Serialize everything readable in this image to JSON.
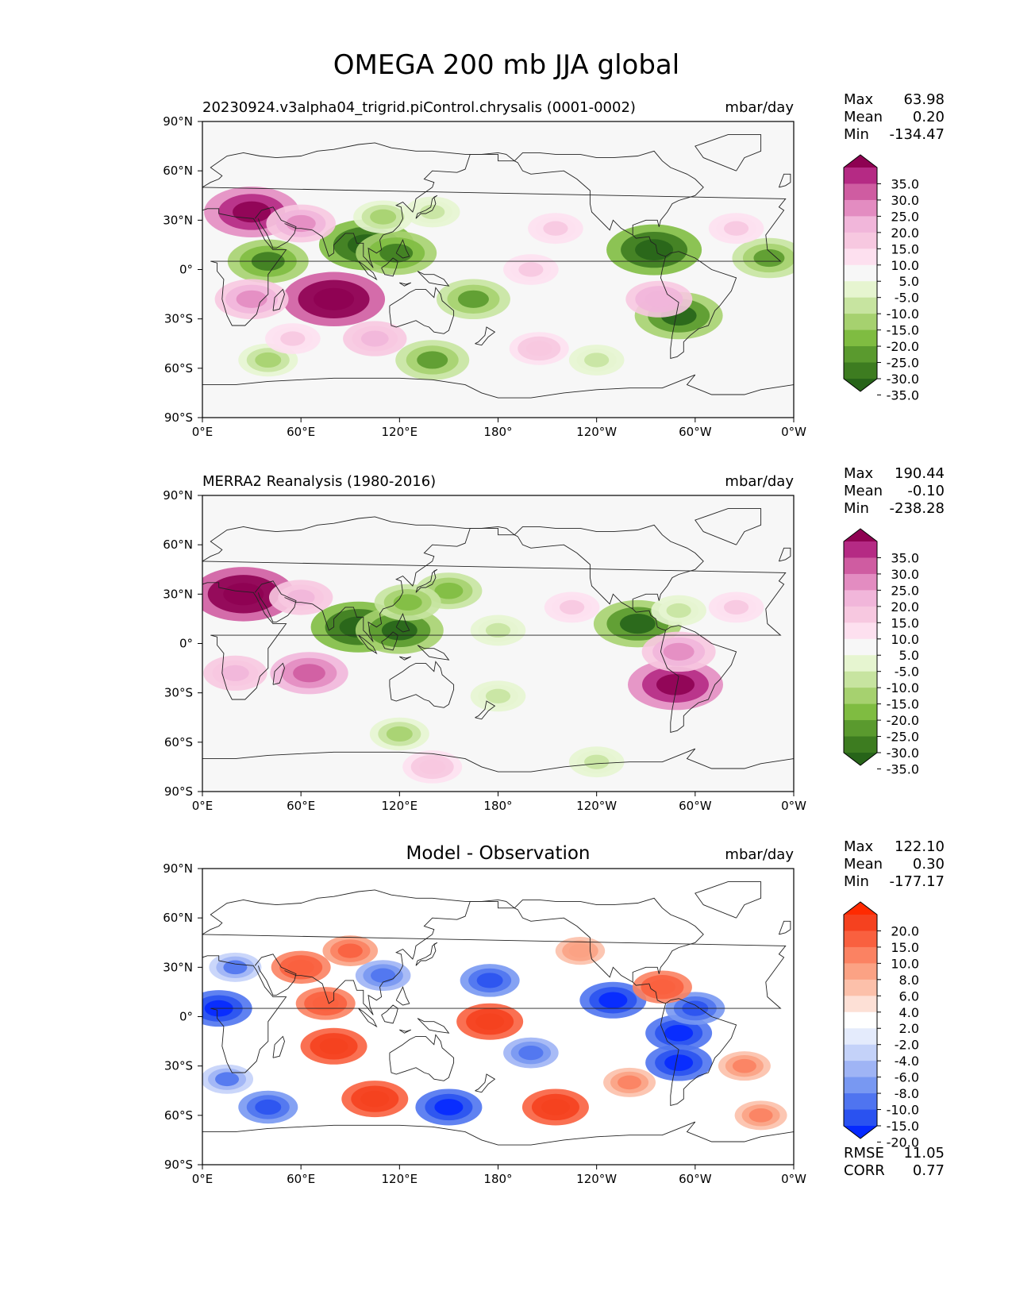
{
  "figure": {
    "title": "OMEGA 200 mb JJA global"
  },
  "axes": {
    "lat_ticks": [
      "90°N",
      "60°N",
      "30°N",
      "0°",
      "30°S",
      "60°S",
      "90°S"
    ],
    "lon_ticks": [
      "0°E",
      "60°E",
      "120°E",
      "180°",
      "120°W",
      "60°W",
      "0°W"
    ]
  },
  "colors": {
    "div_piyg": [
      "#276419",
      "#3d7c20",
      "#5a9a2e",
      "#7fbc41",
      "#a6d16f",
      "#c7e4a0",
      "#e6f5d0",
      "#f7f7f7",
      "#fde0ef",
      "#f7c8e0",
      "#f1b6da",
      "#e38cc1",
      "#cf5ca1",
      "#b52a84",
      "#8e0152"
    ],
    "div_bwr": [
      "#0529ff",
      "#2a52f0",
      "#4f74f0",
      "#7898f2",
      "#9fb4f5",
      "#c4d2f9",
      "#e4ebfc",
      "#ffffff",
      "#fde0d6",
      "#fcc0aa",
      "#fba284",
      "#fb8262",
      "#f9603f",
      "#f5411f",
      "#ff2a00"
    ],
    "coast": "#222222"
  },
  "panels": [
    {
      "title": "20230924.v3alpha04_trigrid.piControl.chrysalis (0001-0002)",
      "center_title": "",
      "units": "mbar/day",
      "stats": [
        [
          "Max",
          "63.98"
        ],
        [
          "Mean",
          "0.20"
        ],
        [
          "Min",
          "-134.47"
        ]
      ],
      "extra_stats": [],
      "colorbar_ticks": [
        "35.0",
        "30.0",
        "25.0",
        "20.0",
        "15.0",
        "10.0",
        "5.0",
        "-5.0",
        "-10.0",
        "-15.0",
        "-20.0",
        "-25.0",
        "-30.0",
        "-35.0"
      ]
    },
    {
      "title": "MERRA2 Reanalysis (1980-2016)",
      "center_title": "",
      "units": "mbar/day",
      "stats": [
        [
          "Max",
          "190.44"
        ],
        [
          "Mean",
          "-0.10"
        ],
        [
          "Min",
          "-238.28"
        ]
      ],
      "extra_stats": [],
      "colorbar_ticks": [
        "35.0",
        "30.0",
        "25.0",
        "20.0",
        "15.0",
        "10.0",
        "5.0",
        "-5.0",
        "-10.0",
        "-15.0",
        "-20.0",
        "-25.0",
        "-30.0",
        "-35.0"
      ]
    },
    {
      "title": "",
      "center_title": "Model - Observation",
      "units": "mbar/day",
      "stats": [
        [
          "Max",
          "122.10"
        ],
        [
          "Mean",
          "0.30"
        ],
        [
          "Min",
          "-177.17"
        ]
      ],
      "extra_stats": [
        [
          "RMSE",
          "11.05"
        ],
        [
          "CORR",
          "0.77"
        ]
      ],
      "colorbar_ticks": [
        "20.0",
        "15.0",
        "10.0",
        "8.0",
        "6.0",
        "4.0",
        "2.0",
        "-2.0",
        "-4.0",
        "-6.0",
        "-8.0",
        "-10.0",
        "-15.0",
        "-20.0"
      ]
    }
  ],
  "chart_data": [
    {
      "type": "heatmap",
      "title": "20230924.v3alpha04_trigrid.piControl.chrysalis (0001-0002)",
      "units": "mbar/day",
      "xlim": [
        0,
        360
      ],
      "ylim": [
        -90,
        90
      ],
      "contour_levels": [
        -35,
        -30,
        -25,
        -20,
        -15,
        -10,
        -5,
        5,
        10,
        15,
        20,
        25,
        30,
        35
      ],
      "stats": {
        "max": 63.98,
        "mean": 0.2,
        "min": -134.47
      },
      "features": [
        {
          "lon": 100,
          "lat": 15,
          "value": -40
        },
        {
          "lon": 118,
          "lat": 10,
          "value": -30
        },
        {
          "lon": 40,
          "lat": 5,
          "value": -30
        },
        {
          "lon": 275,
          "lat": 12,
          "value": -40
        },
        {
          "lon": 345,
          "lat": 7,
          "value": -25
        },
        {
          "lon": 110,
          "lat": 32,
          "value": -15
        },
        {
          "lon": 140,
          "lat": 35,
          "value": -12
        },
        {
          "lon": 165,
          "lat": -18,
          "value": -25
        },
        {
          "lon": 290,
          "lat": -28,
          "value": -35
        },
        {
          "lon": 140,
          "lat": -55,
          "value": -25
        },
        {
          "lon": 40,
          "lat": -55,
          "value": -15
        },
        {
          "lon": 240,
          "lat": -55,
          "value": -12
        },
        {
          "lon": 80,
          "lat": -18,
          "value": 45
        },
        {
          "lon": 30,
          "lat": 35,
          "value": 40
        },
        {
          "lon": 60,
          "lat": 28,
          "value": 22
        },
        {
          "lon": 30,
          "lat": -18,
          "value": 25
        },
        {
          "lon": 200,
          "lat": 0,
          "value": 12
        },
        {
          "lon": 215,
          "lat": 25,
          "value": 12
        },
        {
          "lon": 325,
          "lat": 25,
          "value": 12
        },
        {
          "lon": 55,
          "lat": -42,
          "value": 12
        },
        {
          "lon": 105,
          "lat": -42,
          "value": 18
        },
        {
          "lon": 205,
          "lat": -48,
          "value": 15
        },
        {
          "lon": 278,
          "lat": -18,
          "value": 20
        }
      ]
    },
    {
      "type": "heatmap",
      "title": "MERRA2 Reanalysis (1980-2016)",
      "units": "mbar/day",
      "xlim": [
        0,
        360
      ],
      "ylim": [
        -90,
        90
      ],
      "contour_levels": [
        -35,
        -30,
        -25,
        -20,
        -15,
        -10,
        -5,
        5,
        10,
        15,
        20,
        25,
        30,
        35
      ],
      "stats": {
        "max": 190.44,
        "mean": -0.1,
        "min": -238.28
      },
      "features": [
        {
          "lon": 95,
          "lat": 10,
          "value": -40
        },
        {
          "lon": 120,
          "lat": 8,
          "value": -35
        },
        {
          "lon": 265,
          "lat": 12,
          "value": -35
        },
        {
          "lon": 150,
          "lat": 32,
          "value": -20
        },
        {
          "lon": 125,
          "lat": 25,
          "value": -20
        },
        {
          "lon": 180,
          "lat": 8,
          "value": -12
        },
        {
          "lon": 290,
          "lat": 20,
          "value": -12
        },
        {
          "lon": 180,
          "lat": -32,
          "value": -12
        },
        {
          "lon": 120,
          "lat": -55,
          "value": -15
        },
        {
          "lon": 240,
          "lat": -72,
          "value": -12
        },
        {
          "lon": 25,
          "lat": 30,
          "value": 45
        },
        {
          "lon": 60,
          "lat": 28,
          "value": 18
        },
        {
          "lon": 65,
          "lat": -18,
          "value": 28
        },
        {
          "lon": 20,
          "lat": -18,
          "value": 18
        },
        {
          "lon": 288,
          "lat": -25,
          "value": 40
        },
        {
          "lon": 290,
          "lat": -5,
          "value": 25
        },
        {
          "lon": 225,
          "lat": 22,
          "value": 12
        },
        {
          "lon": 325,
          "lat": 22,
          "value": 12
        },
        {
          "lon": 140,
          "lat": -75,
          "value": 15
        }
      ]
    },
    {
      "type": "heatmap",
      "title": "Model - Observation",
      "units": "mbar/day",
      "xlim": [
        0,
        360
      ],
      "ylim": [
        -90,
        90
      ],
      "contour_levels": [
        -20,
        -15,
        -10,
        -8,
        -6,
        -4,
        -2,
        2,
        4,
        6,
        8,
        10,
        15,
        20
      ],
      "stats": {
        "max": 122.1,
        "mean": 0.3,
        "min": -177.17,
        "rmse": 11.05,
        "corr": 0.77
      },
      "features": [
        {
          "lon": 10,
          "lat": 5,
          "value": -20
        },
        {
          "lon": 250,
          "lat": 10,
          "value": -20
        },
        {
          "lon": 290,
          "lat": -10,
          "value": -20
        },
        {
          "lon": 290,
          "lat": -28,
          "value": -20
        },
        {
          "lon": 150,
          "lat": -55,
          "value": -20
        },
        {
          "lon": 40,
          "lat": -55,
          "value": -15
        },
        {
          "lon": 175,
          "lat": 22,
          "value": -15
        },
        {
          "lon": 110,
          "lat": 25,
          "value": -12
        },
        {
          "lon": 200,
          "lat": -22,
          "value": -12
        },
        {
          "lon": 300,
          "lat": 5,
          "value": -15
        },
        {
          "lon": 15,
          "lat": -38,
          "value": -10
        },
        {
          "lon": 20,
          "lat": 30,
          "value": -10
        },
        {
          "lon": 80,
          "lat": -18,
          "value": 20
        },
        {
          "lon": 105,
          "lat": -50,
          "value": 20
        },
        {
          "lon": 215,
          "lat": -55,
          "value": 20
        },
        {
          "lon": 175,
          "lat": -3,
          "value": 20
        },
        {
          "lon": 75,
          "lat": 8,
          "value": 15
        },
        {
          "lon": 60,
          "lat": 30,
          "value": 15
        },
        {
          "lon": 90,
          "lat": 40,
          "value": 12
        },
        {
          "lon": 280,
          "lat": 18,
          "value": 15
        },
        {
          "lon": 260,
          "lat": -40,
          "value": 10
        },
        {
          "lon": 330,
          "lat": -30,
          "value": 10
        },
        {
          "lon": 340,
          "lat": -60,
          "value": 10
        },
        {
          "lon": 230,
          "lat": 40,
          "value": 8
        }
      ]
    }
  ]
}
